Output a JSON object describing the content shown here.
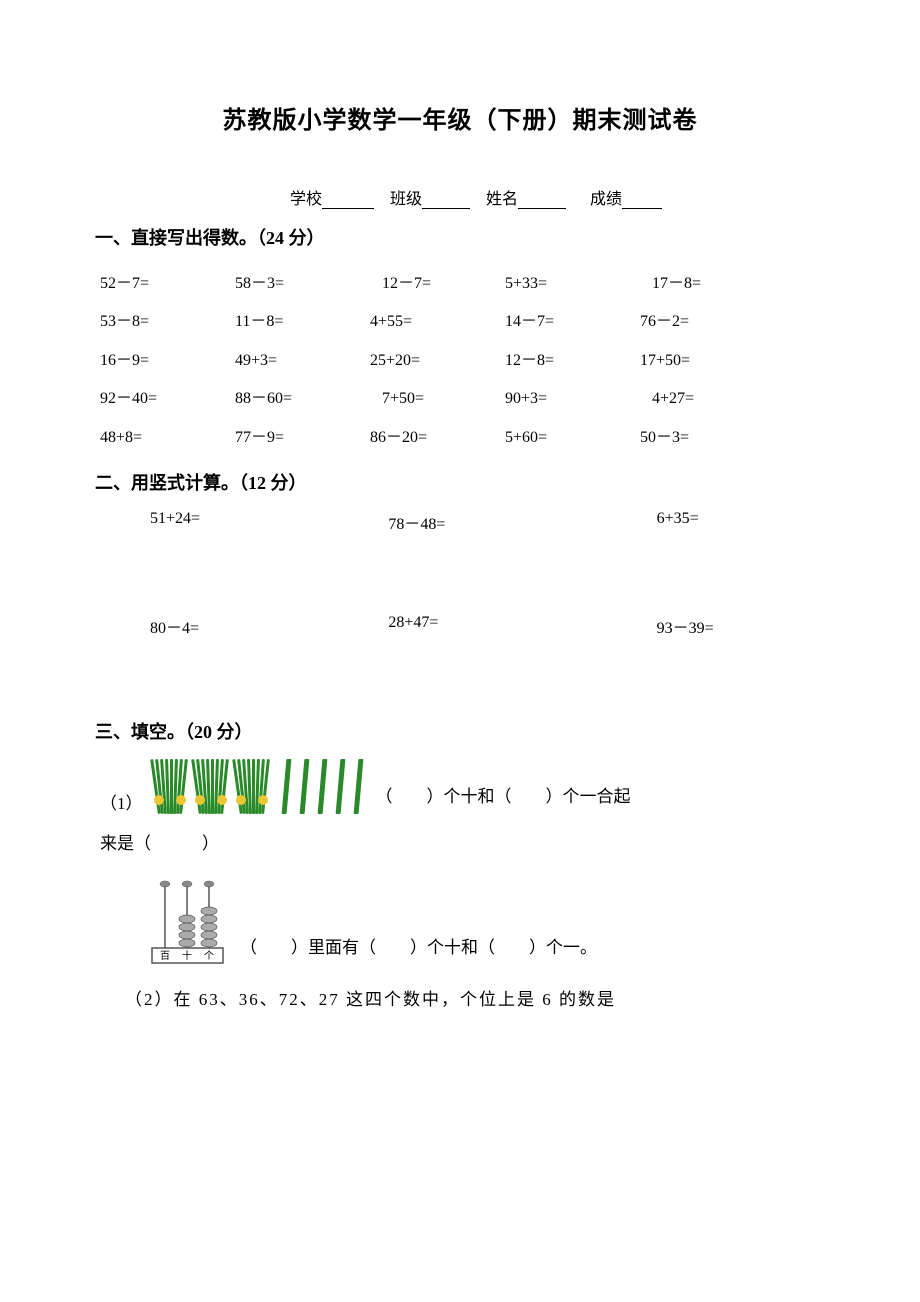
{
  "title": "苏教版小学数学一年级（下册）期末测试卷",
  "info": {
    "school": "学校",
    "class": "班级",
    "name": "姓名",
    "score": "成绩"
  },
  "section1": {
    "title": "一、直接写出得数。（24 分）",
    "rows": [
      [
        "52－7=",
        "58－3=",
        "12－7=",
        "5+33=",
        "17－8="
      ],
      [
        "53－8=",
        "11－8=",
        "4+55=",
        "14－7=",
        "76－2="
      ],
      [
        "16－9=",
        "49+3=",
        "25+20=",
        "12－8=",
        "17+50="
      ],
      [
        "92－40=",
        "88－60=",
        "7+50=",
        "90+3=",
        "4+27="
      ],
      [
        "48+8=",
        "77－9=",
        "86－20=",
        "5+60=",
        "50－3="
      ]
    ]
  },
  "section2": {
    "title": "二、用竖式计算。（12 分）",
    "rows": [
      [
        "51+24=",
        "78－48=",
        "6+35="
      ],
      [
        "80－4=",
        "28+47=",
        "93－39="
      ]
    ]
  },
  "section3": {
    "title": "三、填空。（20 分）",
    "q1_num": "（1）",
    "q1_text1": "（　　）个十和（　　）个一合起",
    "q1_text2": "来是（　　　）",
    "q1b_text": "（　　）里面有（　　）个十和（　　）个一。",
    "q2_text": "（2）在 63、36、72、27 这四个数中，个位上是 6 的数是",
    "abacus_labels": [
      "百",
      "十",
      "个"
    ]
  },
  "colors": {
    "text": "#000000",
    "background": "#ffffff",
    "stick_green": "#2a8a2a",
    "band_yellow": "#eac633",
    "abacus_gray": "#888888",
    "abacus_dark": "#555555"
  },
  "sticks": {
    "bundles": 3,
    "singles": 5
  },
  "abacus_beads": {
    "hundred": 0,
    "ten": 4,
    "one": 5
  }
}
